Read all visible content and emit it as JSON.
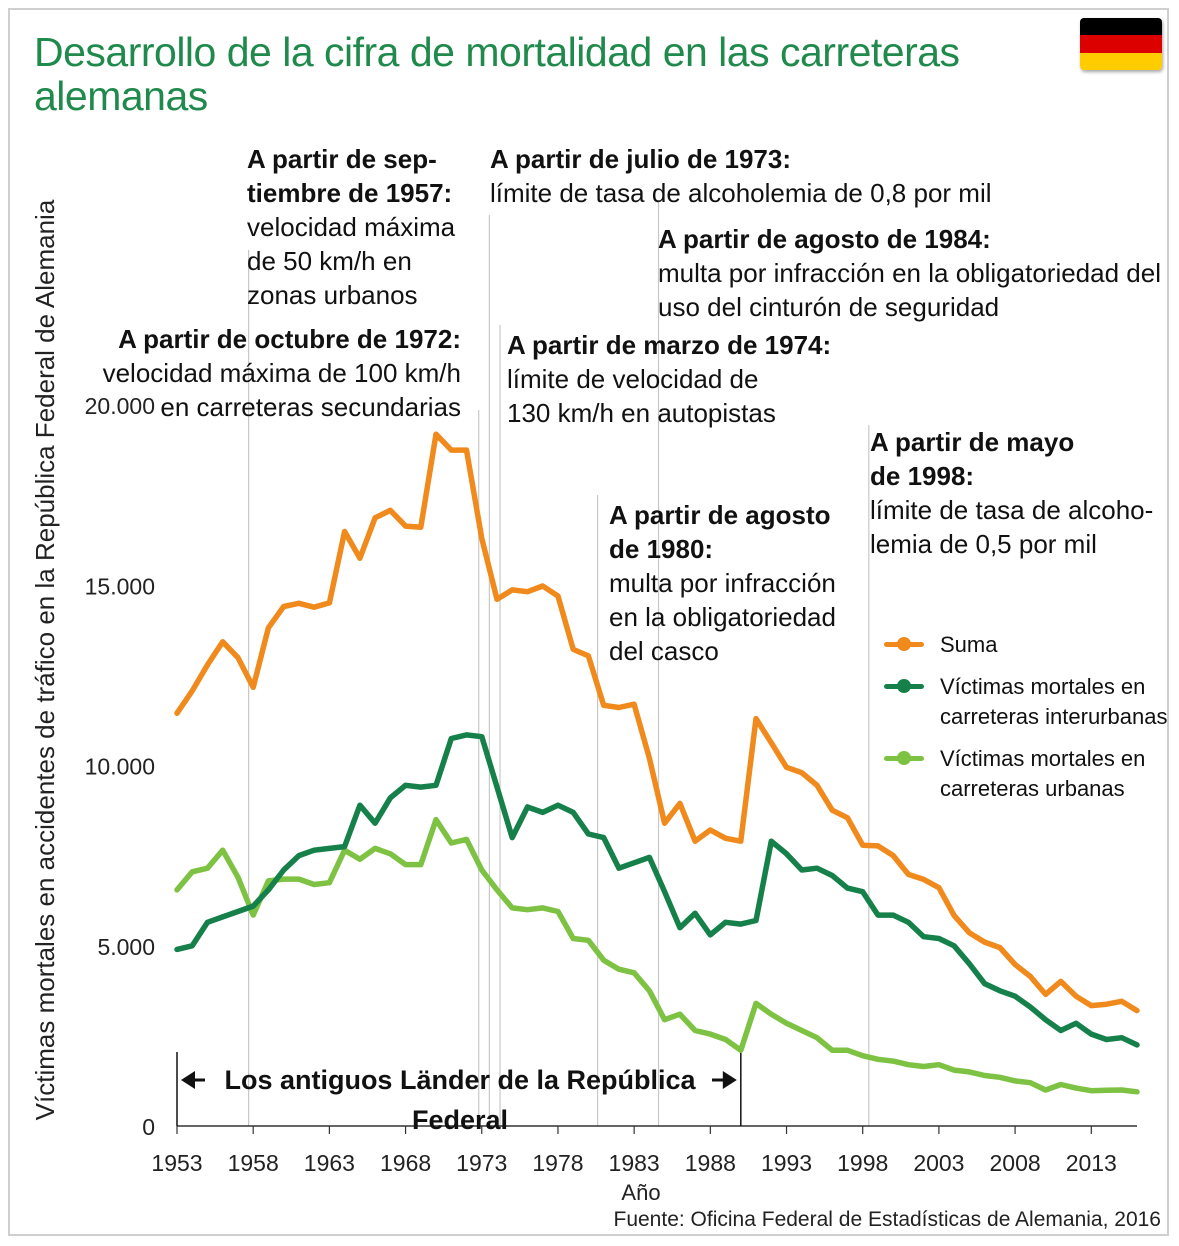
{
  "title": "Desarrollo de la cifra de mortalidad en las carreteras alemanas",
  "source": "Fuente: Oficina Federal de Estadísticas de Alemania, 2016",
  "band_label": "Los antiguos Länder de la República Federal",
  "colors": {
    "total": "#f08a1c",
    "interurban": "#16804a",
    "urban": "#7dc242",
    "title": "#1f8a4c",
    "grid": "#c8c8c8"
  },
  "annotations": [
    {
      "heading": "A partir de sep- tiembre de 1957:",
      "heading_lines": [
        "A partir de sep-",
        "tiembre de 1957:"
      ],
      "lines": [
        "velocidad máxima",
        "de 50 km/h en",
        "zonas urbanos"
      ]
    },
    {
      "heading": "A partir de octubre de 1972:",
      "heading_lines": [
        "A partir de octubre de 1972:"
      ],
      "lines": [
        "velocidad máxima de 100 km/h",
        "en carreteras secundarias"
      ]
    },
    {
      "heading": "A partir de julio de 1973:",
      "heading_lines": [
        "A partir de julio de 1973:"
      ],
      "lines": [
        "límite de tasa de alcoholemia de 0,8 por mil"
      ]
    },
    {
      "heading": "A partir de agosto de 1984:",
      "heading_lines": [
        "A partir de agosto de 1984:"
      ],
      "lines": [
        "multa por infracción en la obligatoriedad del",
        "uso del cinturón de seguridad"
      ]
    },
    {
      "heading": "A partir de marzo de 1974:",
      "heading_lines": [
        "A partir de marzo de 1974:"
      ],
      "lines": [
        "límite de velocidad de",
        "130 km/h en autopistas"
      ]
    },
    {
      "heading": "A partir de mayo de 1998:",
      "heading_lines": [
        "A partir de mayo",
        "de 1998:"
      ],
      "lines": [
        "límite de tasa de alcoho-",
        "lemia de 0,5 por mil"
      ]
    },
    {
      "heading": "A partir de agosto de 1980:",
      "heading_lines": [
        "A partir de agosto",
        "de 1980:"
      ],
      "lines": [
        "multa por infracción",
        "en la obligatoriedad",
        "del casco"
      ]
    }
  ],
  "chart_data": {
    "type": "line",
    "title": "Desarrollo de la cifra de mortalidad en las carreteras alemanas",
    "xlabel": "Año",
    "ylabel": "Víctimas mortales en accidentes de tráfico en la República Federal de Alemania",
    "ylim": [
      0,
      20000
    ],
    "xlim": [
      1953,
      2016
    ],
    "x_ticks": [
      1953,
      1958,
      1963,
      1968,
      1973,
      1978,
      1983,
      1988,
      1993,
      1998,
      2003,
      2008,
      2013
    ],
    "y_ticks": [
      0,
      5000,
      10000,
      15000,
      20000
    ],
    "y_tick_labels": [
      "0",
      "5.000",
      "10.000",
      "15.000",
      "20.000"
    ],
    "event_years": [
      1957.7,
      1972.8,
      1973.5,
      1974.2,
      1980.6,
      1984.6,
      1998.4
    ],
    "period_boundary": 1990,
    "legend_position": "right",
    "x": [
      1953,
      1954,
      1955,
      1956,
      1957,
      1958,
      1959,
      1960,
      1961,
      1962,
      1963,
      1964,
      1965,
      1966,
      1967,
      1968,
      1969,
      1970,
      1971,
      1972,
      1973,
      1974,
      1975,
      1976,
      1977,
      1978,
      1979,
      1980,
      1981,
      1982,
      1983,
      1984,
      1985,
      1986,
      1987,
      1988,
      1989,
      1990,
      1991,
      1992,
      1993,
      1994,
      1995,
      1996,
      1997,
      1998,
      1999,
      2000,
      2001,
      2002,
      2003,
      2004,
      2005,
      2006,
      2007,
      2008,
      2009,
      2010,
      2011,
      2012,
      2013,
      2014,
      2015,
      2016
    ],
    "series": [
      {
        "name": "Suma",
        "values": [
          11450,
          12070,
          12790,
          13430,
          12990,
          12170,
          13820,
          14410,
          14500,
          14390,
          14510,
          16490,
          15750,
          16870,
          17080,
          16640,
          16610,
          19190,
          18750,
          18750,
          16300,
          14610,
          14870,
          14820,
          14980,
          14700,
          13220,
          13040,
          11670,
          11610,
          11700,
          10200,
          8400,
          8950,
          7900,
          8210,
          7980,
          7900,
          11300,
          10630,
          9950,
          9800,
          9450,
          8760,
          8550,
          7790,
          7770,
          7500,
          6980,
          6840,
          6610,
          5840,
          5360,
          5100,
          4950,
          4480,
          4150,
          3650,
          4010,
          3600,
          3340,
          3380,
          3460,
          3200
        ]
      },
      {
        "name": "Víctimas mortales en carreteras interurbanas",
        "values": [
          4900,
          5000,
          5650,
          5800,
          5950,
          6100,
          6550,
          7100,
          7500,
          7650,
          7700,
          7750,
          8900,
          8400,
          9100,
          9450,
          9400,
          9450,
          10750,
          10850,
          10800,
          9400,
          8000,
          8850,
          8700,
          8900,
          8700,
          8100,
          8000,
          7150,
          7300,
          7450,
          6500,
          5500,
          5900,
          5300,
          5650,
          5600,
          5700,
          7900,
          7550,
          7100,
          7150,
          6950,
          6600,
          6500,
          5850,
          5850,
          5650,
          5250,
          5200,
          5000,
          4500,
          3950,
          3750,
          3600,
          3300,
          2950,
          2650,
          2850,
          2550,
          2400,
          2450,
          2250
        ]
      },
      {
        "name": "Víctimas mortales en carreteras urbanas",
        "values": [
          6550,
          7050,
          7150,
          7650,
          6900,
          5850,
          6800,
          6850,
          6850,
          6700,
          6750,
          7650,
          7400,
          7700,
          7550,
          7250,
          7250,
          8500,
          7850,
          7950,
          7100,
          6550,
          6050,
          6000,
          6050,
          5950,
          5200,
          5150,
          4600,
          4350,
          4250,
          3750,
          2950,
          3100,
          2650,
          2550,
          2400,
          2100,
          3400,
          3100,
          2850,
          2650,
          2450,
          2100,
          2100,
          1950,
          1850,
          1800,
          1700,
          1650,
          1700,
          1550,
          1500,
          1400,
          1350,
          1250,
          1200,
          1000,
          1150,
          1050,
          980,
          990,
          1000,
          950
        ]
      }
    ]
  }
}
